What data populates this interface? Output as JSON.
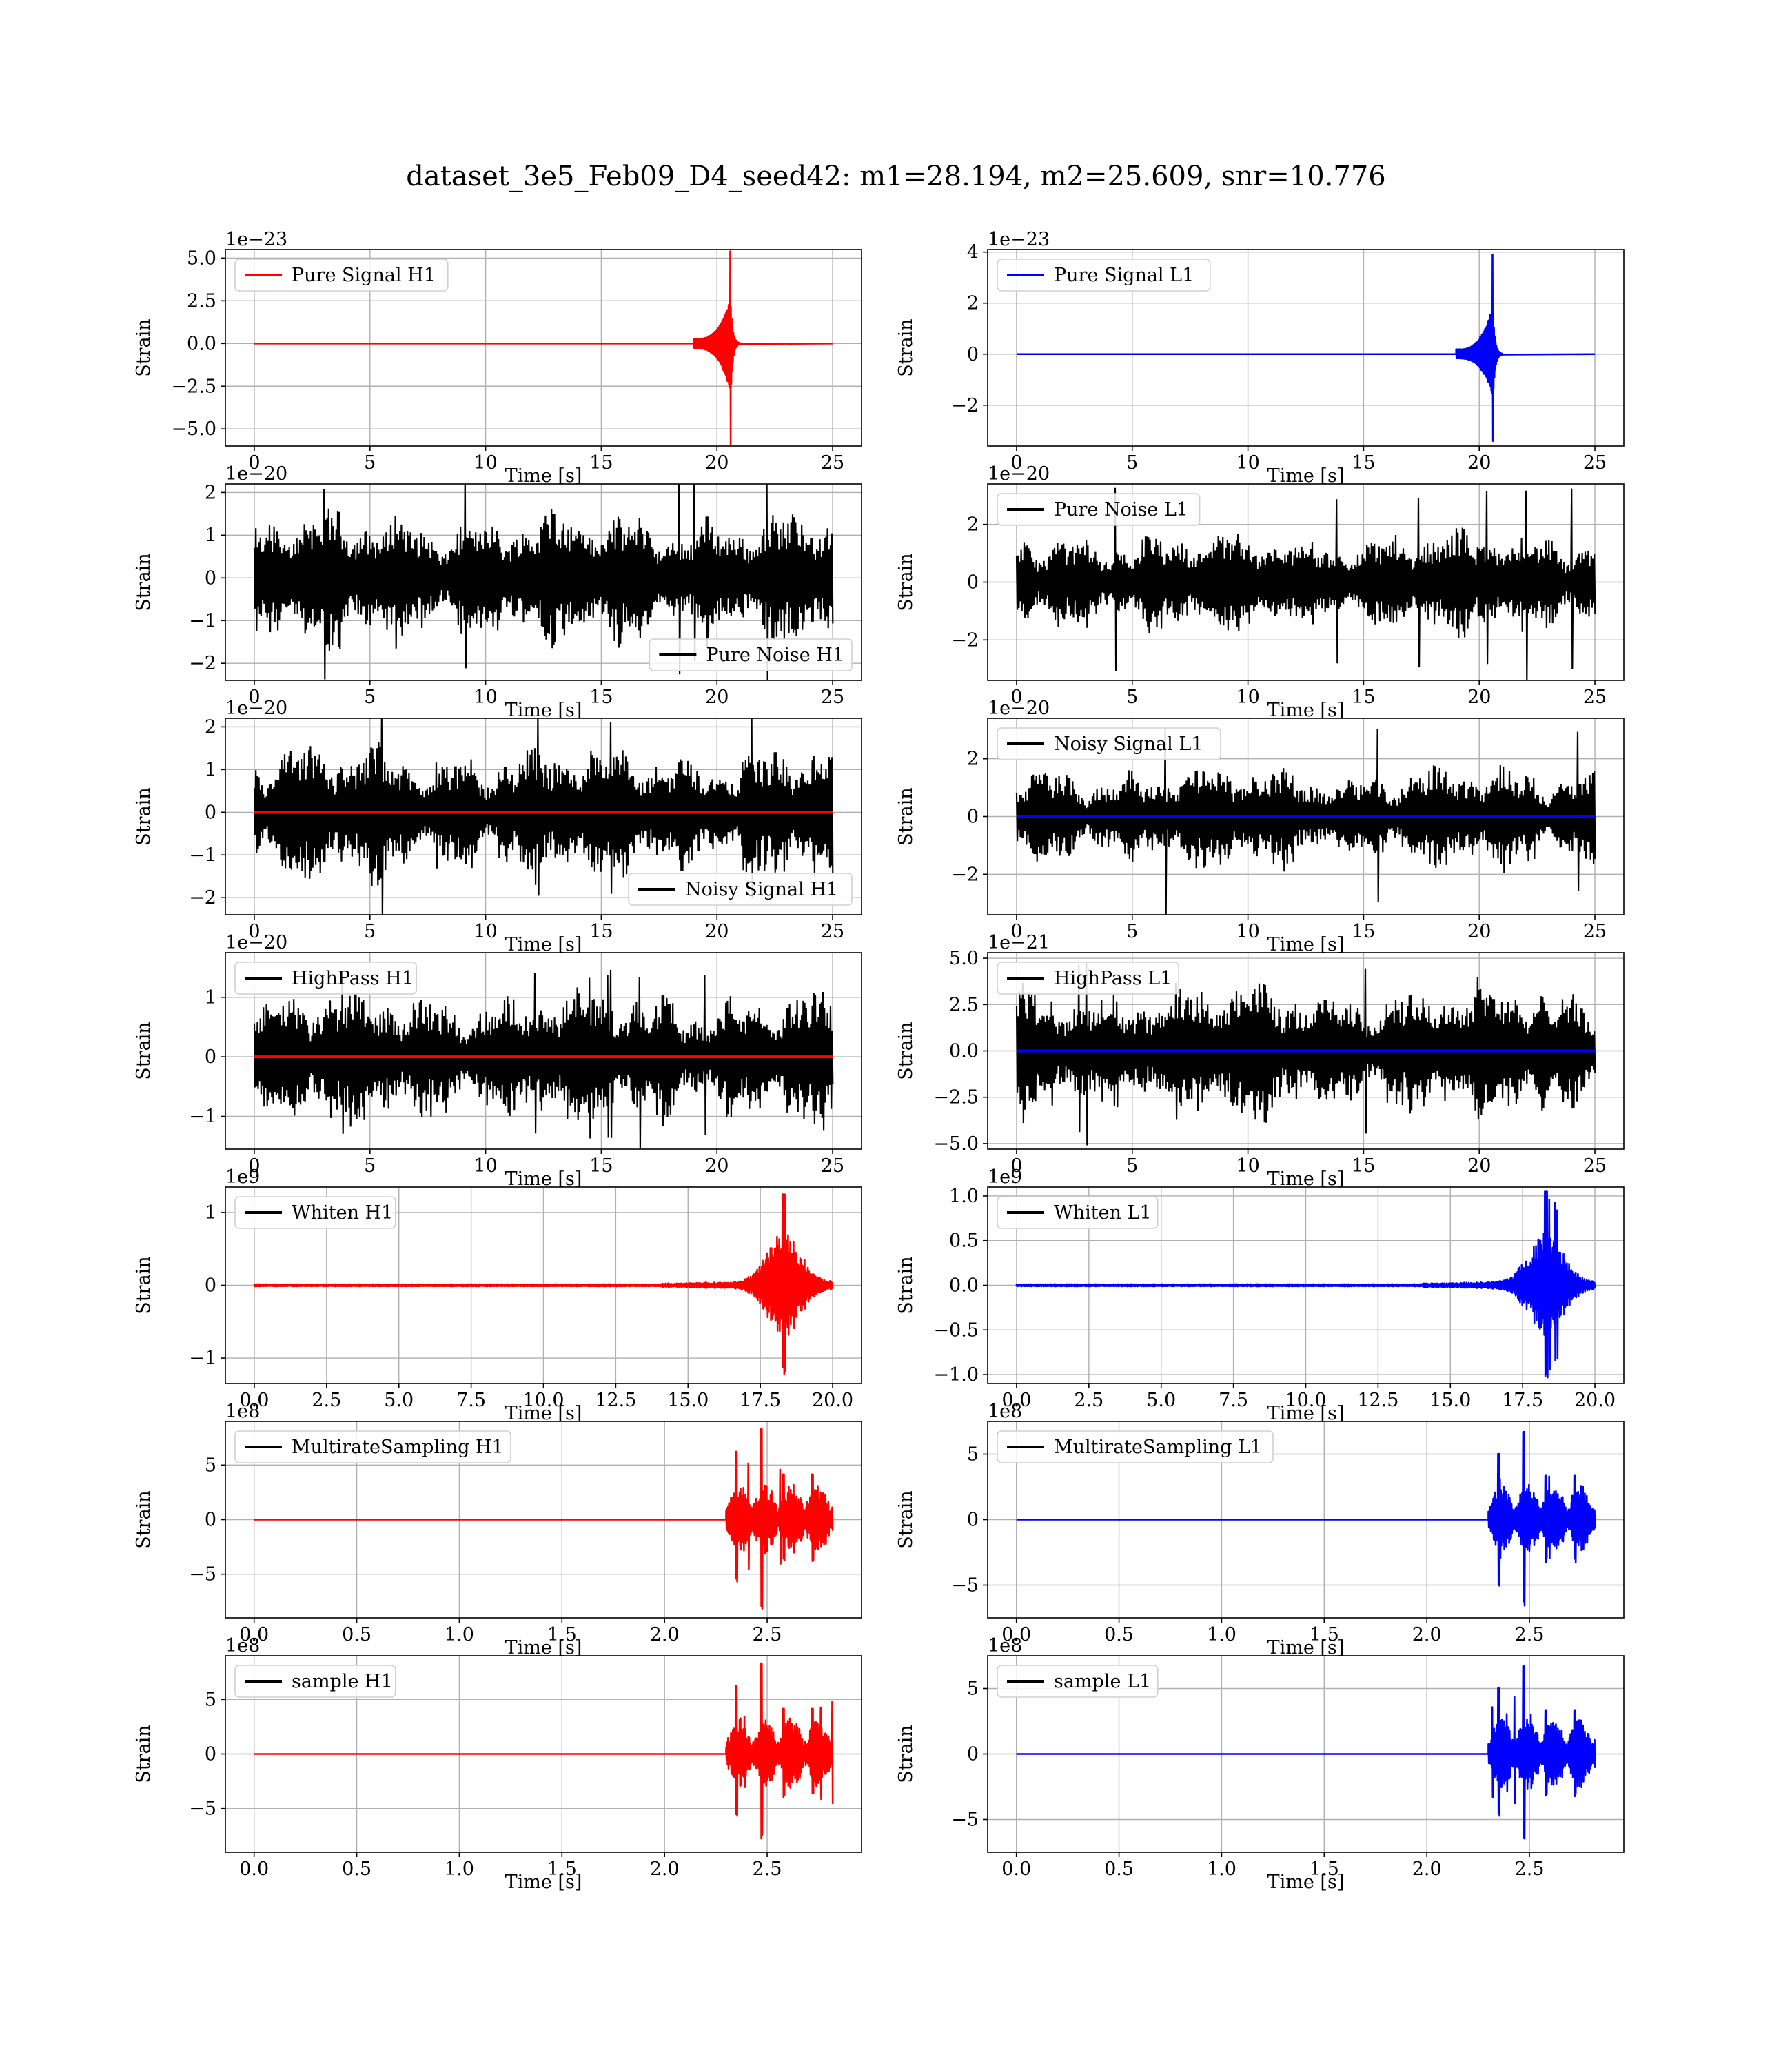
{
  "figure": {
    "suptitle": "dataset_3e5_Feb09_D4_seed42: m1=28.194, m2=25.609, snr=10.776",
    "colors": {
      "h1_signal": "#ff0000",
      "l1_signal": "#0000ff",
      "noise": "#000000"
    }
  },
  "chart_data": [
    {
      "id": "pure-signal-h1",
      "type": "line",
      "ylabel": "Strain",
      "xlabel": "Time [s]",
      "offset_text": "1e−23",
      "xlim": [
        -1.25,
        26.25
      ],
      "ylim": [
        -6.0,
        5.5
      ],
      "xticks": [
        0,
        5,
        10,
        15,
        20,
        25
      ],
      "xtick_labels": [
        "0",
        "5",
        "10",
        "15",
        "20",
        "25"
      ],
      "yticks": [
        5.0,
        2.5,
        0.0,
        -2.5,
        -5.0
      ],
      "ytick_labels": [
        "5.0",
        "2.5",
        "0.0",
        "−2.5",
        "−5.0"
      ],
      "legend": {
        "loc": "upper left",
        "entries": [
          {
            "label": "Pure Signal H1",
            "color": "#ff0000"
          }
        ]
      },
      "series": [
        {
          "name": "Pure Signal H1",
          "color": "#ff0000",
          "kind": "chirp",
          "x_range": [
            0,
            25
          ],
          "merger": 20.6,
          "onset": 19.0,
          "amplitude": 5.4,
          "amplitude_neg": 5.9
        }
      ]
    },
    {
      "id": "pure-signal-l1",
      "type": "line",
      "ylabel": "Strain",
      "xlabel": "Time [s]",
      "offset_text": "1e−23",
      "xlim": [
        -1.25,
        26.25
      ],
      "ylim": [
        -3.6,
        4.1
      ],
      "xticks": [
        0,
        5,
        10,
        15,
        20,
        25
      ],
      "xtick_labels": [
        "0",
        "5",
        "10",
        "15",
        "20",
        "25"
      ],
      "yticks": [
        4,
        2,
        0,
        -2
      ],
      "ytick_labels": [
        "4",
        "2",
        "0",
        "−2"
      ],
      "legend": {
        "loc": "upper left",
        "entries": [
          {
            "label": "Pure Signal L1",
            "color": "#0000ff"
          }
        ]
      },
      "series": [
        {
          "name": "Pure Signal L1",
          "color": "#0000ff",
          "kind": "chirp",
          "x_range": [
            0,
            25
          ],
          "merger": 20.6,
          "onset": 19.0,
          "amplitude": 3.9,
          "amplitude_neg": 3.4
        }
      ]
    },
    {
      "id": "pure-noise-h1",
      "type": "line",
      "ylabel": "Strain",
      "xlabel": "Time [s]",
      "offset_text": "1e−20",
      "xlim": [
        -1.25,
        26.25
      ],
      "ylim": [
        -2.4,
        2.2
      ],
      "xticks": [
        0,
        5,
        10,
        15,
        20,
        25
      ],
      "xtick_labels": [
        "0",
        "5",
        "10",
        "15",
        "20",
        "25"
      ],
      "yticks": [
        2,
        1,
        0,
        -1,
        -2
      ],
      "ytick_labels": [
        "2",
        "1",
        "0",
        "−1",
        "−2"
      ],
      "legend": {
        "loc": "lower right",
        "entries": [
          {
            "label": "Pure Noise H1",
            "color": "#000000"
          }
        ]
      },
      "series": [
        {
          "name": "Pure Noise H1",
          "color": "#000000",
          "kind": "noise",
          "x_range": [
            0,
            25
          ],
          "amplitude": 1.6,
          "peak": 2.4
        }
      ]
    },
    {
      "id": "pure-noise-l1",
      "type": "line",
      "ylabel": "Strain",
      "xlabel": "Time [s]",
      "offset_text": "1e−20",
      "xlim": [
        -1.25,
        26.25
      ],
      "ylim": [
        -3.4,
        3.4
      ],
      "xticks": [
        0,
        5,
        10,
        15,
        20,
        25
      ],
      "xtick_labels": [
        "0",
        "5",
        "10",
        "15",
        "20",
        "25"
      ],
      "yticks": [
        2,
        0,
        -2
      ],
      "ytick_labels": [
        "2",
        "0",
        "−2"
      ],
      "legend": {
        "loc": "upper left",
        "entries": [
          {
            "label": "Pure Noise L1",
            "color": "#000000"
          }
        ]
      },
      "series": [
        {
          "name": "Pure Noise L1",
          "color": "#000000",
          "kind": "noise",
          "x_range": [
            0,
            25
          ],
          "amplitude": 1.8,
          "peak": 3.3
        }
      ]
    },
    {
      "id": "noisy-signal-h1",
      "type": "line",
      "ylabel": "Strain",
      "xlabel": "Time [s]",
      "offset_text": "1e−20",
      "xlim": [
        -1.25,
        26.25
      ],
      "ylim": [
        -2.4,
        2.2
      ],
      "xticks": [
        0,
        5,
        10,
        15,
        20,
        25
      ],
      "xtick_labels": [
        "0",
        "5",
        "10",
        "15",
        "20",
        "25"
      ],
      "yticks": [
        2,
        1,
        0,
        -1,
        -2
      ],
      "ytick_labels": [
        "2",
        "1",
        "0",
        "−1",
        "−2"
      ],
      "legend": {
        "loc": "lower right",
        "entries": [
          {
            "label": "Noisy Signal H1",
            "color": "#000000"
          }
        ]
      },
      "series": [
        {
          "name": "Noisy Signal H1",
          "color": "#000000",
          "kind": "noise",
          "x_range": [
            0,
            25
          ],
          "amplitude": 1.6,
          "peak": 2.4
        },
        {
          "color": "#ff0000",
          "kind": "flat",
          "x_range": [
            0,
            25
          ],
          "level": 0
        }
      ]
    },
    {
      "id": "noisy-signal-l1",
      "type": "line",
      "ylabel": "Strain",
      "xlabel": "Time [s]",
      "offset_text": "1e−20",
      "xlim": [
        -1.25,
        26.25
      ],
      "ylim": [
        -3.4,
        3.4
      ],
      "xticks": [
        0,
        5,
        10,
        15,
        20,
        25
      ],
      "xtick_labels": [
        "0",
        "5",
        "10",
        "15",
        "20",
        "25"
      ],
      "yticks": [
        2,
        0,
        -2
      ],
      "ytick_labels": [
        "2",
        "0",
        "−2"
      ],
      "legend": {
        "loc": "upper left",
        "entries": [
          {
            "label": "Noisy Signal L1",
            "color": "#000000"
          }
        ]
      },
      "series": [
        {
          "name": "Noisy Signal L1",
          "color": "#000000",
          "kind": "noise",
          "x_range": [
            0,
            25
          ],
          "amplitude": 1.8,
          "peak": 3.3
        },
        {
          "color": "#0000ff",
          "kind": "flat",
          "x_range": [
            0,
            25
          ],
          "level": 0
        }
      ]
    },
    {
      "id": "highpass-h1",
      "type": "line",
      "ylabel": "Strain",
      "xlabel": "Time [s]",
      "offset_text": "1e−20",
      "xlim": [
        -1.25,
        26.25
      ],
      "ylim": [
        -1.55,
        1.75
      ],
      "xticks": [
        0,
        5,
        10,
        15,
        20,
        25
      ],
      "xtick_labels": [
        "0",
        "5",
        "10",
        "15",
        "20",
        "25"
      ],
      "yticks": [
        1,
        0,
        -1
      ],
      "ytick_labels": [
        "1",
        "0",
        "−1"
      ],
      "legend": {
        "loc": "upper left",
        "entries": [
          {
            "label": "HighPass H1",
            "color": "#000000"
          }
        ]
      },
      "series": [
        {
          "name": "HighPass H1",
          "color": "#000000",
          "kind": "noise",
          "x_range": [
            0,
            25
          ],
          "amplitude": 1.15,
          "peak": 1.5
        },
        {
          "color": "#ff0000",
          "kind": "flat",
          "x_range": [
            0,
            25
          ],
          "level": 0
        }
      ]
    },
    {
      "id": "highpass-l1",
      "type": "line",
      "ylabel": "Strain",
      "xlabel": "Time [s]",
      "offset_text": "1e−21",
      "xlim": [
        -1.25,
        26.25
      ],
      "ylim": [
        -5.3,
        5.3
      ],
      "xticks": [
        0,
        5,
        10,
        15,
        20,
        25
      ],
      "xtick_labels": [
        "0",
        "5",
        "10",
        "15",
        "20",
        "25"
      ],
      "yticks": [
        5.0,
        2.5,
        0.0,
        -2.5,
        -5.0
      ],
      "ytick_labels": [
        "5.0",
        "2.5",
        "0.0",
        "−2.5",
        "−5.0"
      ],
      "legend": {
        "loc": "upper left",
        "entries": [
          {
            "label": "HighPass L1",
            "color": "#000000"
          }
        ]
      },
      "series": [
        {
          "name": "HighPass L1",
          "color": "#000000",
          "kind": "noise",
          "x_range": [
            0,
            25
          ],
          "amplitude": 3.8,
          "peak": 5.0
        },
        {
          "color": "#0000ff",
          "kind": "flat",
          "x_range": [
            0,
            25
          ],
          "level": 0
        }
      ]
    },
    {
      "id": "whiten-h1",
      "type": "line",
      "ylabel": "Strain",
      "xlabel": "Time [s]",
      "offset_text": "1e9",
      "xlim": [
        -1.0,
        21.0
      ],
      "ylim": [
        -1.35,
        1.35
      ],
      "xticks": [
        0,
        2.5,
        5,
        7.5,
        10,
        12.5,
        15,
        17.5,
        20
      ],
      "xtick_labels": [
        "0.0",
        "2.5",
        "5.0",
        "7.5",
        "10.0",
        "12.5",
        "15.0",
        "17.5",
        "20.0"
      ],
      "yticks": [
        1,
        0,
        -1
      ],
      "ytick_labels": [
        "1",
        "0",
        "−1"
      ],
      "legend": {
        "loc": "upper left",
        "entries": [
          {
            "label": "Whiten H1",
            "color": "#000000"
          }
        ]
      },
      "series": [
        {
          "name": "Whiten H1",
          "color": "#ff0000",
          "kind": "burst",
          "x_range": [
            0,
            20
          ],
          "center": 18.3,
          "width": 1.2,
          "amplitude": 1.25,
          "amplitude_neg": 1.25
        }
      ]
    },
    {
      "id": "whiten-l1",
      "type": "line",
      "ylabel": "Strain",
      "xlabel": "Time [s]",
      "offset_text": "1e9",
      "xlim": [
        -1.0,
        21.0
      ],
      "ylim": [
        -1.1,
        1.1
      ],
      "xticks": [
        0,
        2.5,
        5,
        7.5,
        10,
        12.5,
        15,
        17.5,
        20
      ],
      "xtick_labels": [
        "0.0",
        "2.5",
        "5.0",
        "7.5",
        "10.0",
        "12.5",
        "15.0",
        "17.5",
        "20.0"
      ],
      "yticks": [
        1.0,
        0.5,
        0.0,
        -0.5,
        -1.0
      ],
      "ytick_labels": [
        "1.0",
        "0.5",
        "0.0",
        "−0.5",
        "−1.0"
      ],
      "legend": {
        "loc": "upper left",
        "entries": [
          {
            "label": "Whiten L1",
            "color": "#000000"
          }
        ]
      },
      "series": [
        {
          "name": "Whiten L1",
          "color": "#0000ff",
          "kind": "burst",
          "x_range": [
            0,
            20
          ],
          "center": 18.3,
          "width": 1.2,
          "amplitude": 1.05,
          "amplitude_neg": 1.05
        }
      ]
    },
    {
      "id": "multirate-h1",
      "type": "line",
      "ylabel": "Strain",
      "xlabel": "Time [s]",
      "offset_text": "1e8",
      "xlim": [
        -0.14,
        2.96
      ],
      "ylim": [
        -9.0,
        9.0
      ],
      "xticks": [
        0,
        0.5,
        1.0,
        1.5,
        2.0,
        2.5
      ],
      "xtick_labels": [
        "0.0",
        "0.5",
        "1.0",
        "1.5",
        "2.0",
        "2.5"
      ],
      "yticks": [
        5,
        0,
        -5
      ],
      "ytick_labels": [
        "5",
        "0",
        "−5"
      ],
      "legend": {
        "loc": "upper left",
        "entries": [
          {
            "label": "MultirateSampling H1",
            "color": "#000000"
          }
        ]
      },
      "series": [
        {
          "name": "MultirateSampling H1",
          "color": "#ff0000",
          "kind": "segments",
          "x_range": [
            0,
            2.82
          ],
          "seg_start": 2.3,
          "peak_x": 2.47,
          "amplitude": 8.3,
          "amplitude_neg": 8.4
        }
      ]
    },
    {
      "id": "multirate-l1",
      "type": "line",
      "ylabel": "Strain",
      "xlabel": "Time [s]",
      "offset_text": "1e8",
      "xlim": [
        -0.14,
        2.96
      ],
      "ylim": [
        -7.5,
        7.5
      ],
      "xticks": [
        0,
        0.5,
        1.0,
        1.5,
        2.0,
        2.5
      ],
      "xtick_labels": [
        "0.0",
        "0.5",
        "1.0",
        "1.5",
        "2.0",
        "2.5"
      ],
      "yticks": [
        5,
        0,
        -5
      ],
      "ytick_labels": [
        "5",
        "0",
        "−5"
      ],
      "legend": {
        "loc": "upper left",
        "entries": [
          {
            "label": "MultirateSampling L1",
            "color": "#000000"
          }
        ]
      },
      "series": [
        {
          "name": "MultirateSampling L1",
          "color": "#0000ff",
          "kind": "segments",
          "x_range": [
            0,
            2.82
          ],
          "seg_start": 2.3,
          "peak_x": 2.47,
          "amplitude": 6.7,
          "amplitude_neg": 6.8
        }
      ]
    },
    {
      "id": "sample-h1",
      "type": "line",
      "ylabel": "Strain",
      "xlabel": "Time [s]",
      "offset_text": "1e8",
      "xlim": [
        -0.14,
        2.96
      ],
      "ylim": [
        -9.0,
        9.0
      ],
      "xticks": [
        0,
        0.5,
        1.0,
        1.5,
        2.0,
        2.5
      ],
      "xtick_labels": [
        "0.0",
        "0.5",
        "1.0",
        "1.5",
        "2.0",
        "2.5"
      ],
      "yticks": [
        5,
        0,
        -5
      ],
      "ytick_labels": [
        "5",
        "0",
        "−5"
      ],
      "legend": {
        "loc": "upper left",
        "entries": [
          {
            "label": "sample H1",
            "color": "#000000"
          }
        ]
      },
      "series": [
        {
          "name": "sample H1",
          "color": "#ff0000",
          "kind": "segments",
          "x_range": [
            0,
            2.82
          ],
          "seg_start": 2.3,
          "peak_x": 2.47,
          "amplitude": 8.3,
          "amplitude_neg": 8.4
        }
      ]
    },
    {
      "id": "sample-l1",
      "type": "line",
      "ylabel": "Strain",
      "xlabel": "Time [s]",
      "offset_text": "1e8",
      "xlim": [
        -0.14,
        2.96
      ],
      "ylim": [
        -7.5,
        7.5
      ],
      "xticks": [
        0,
        0.5,
        1.0,
        1.5,
        2.0,
        2.5
      ],
      "xtick_labels": [
        "0.0",
        "0.5",
        "1.0",
        "1.5",
        "2.0",
        "2.5"
      ],
      "yticks": [
        5,
        0,
        -5
      ],
      "ytick_labels": [
        "5",
        "0",
        "−5"
      ],
      "legend": {
        "loc": "upper left",
        "entries": [
          {
            "label": "sample L1",
            "color": "#000000"
          }
        ]
      },
      "series": [
        {
          "name": "sample L1",
          "color": "#0000ff",
          "kind": "segments",
          "x_range": [
            0,
            2.82
          ],
          "seg_start": 2.3,
          "peak_x": 2.47,
          "amplitude": 6.7,
          "amplitude_neg": 6.8
        }
      ]
    }
  ]
}
